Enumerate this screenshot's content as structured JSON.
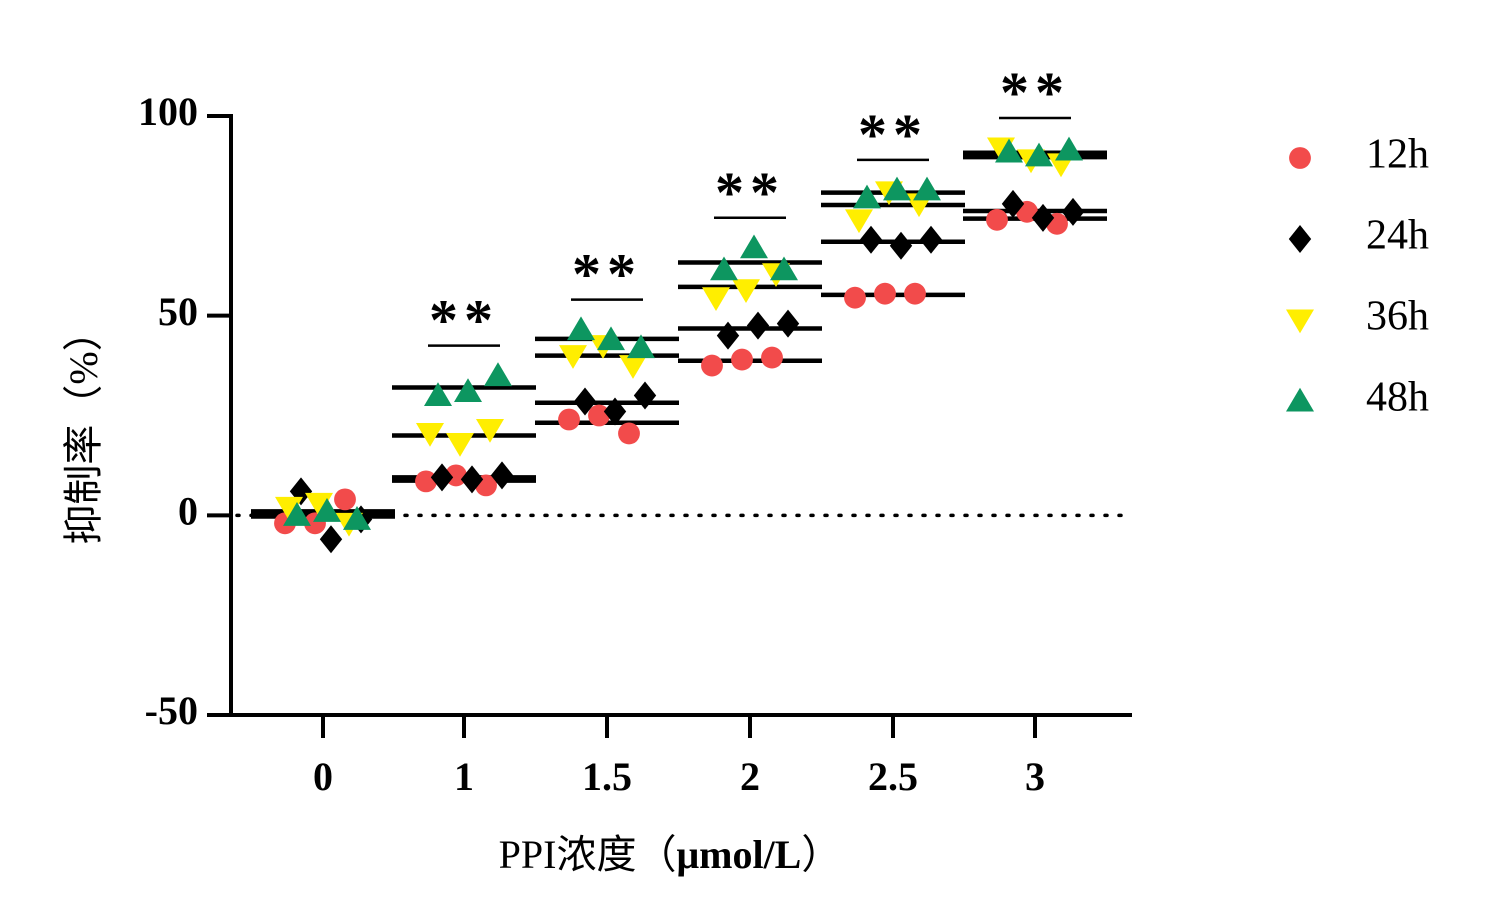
{
  "chart_data": {
    "type": "scatter",
    "x_label_prefix": "PPI浓度（",
    "x_label_unit": "μmol/L",
    "x_label_suffix": "）",
    "ylabel": "抑制率（%）",
    "ylim": [
      -50,
      100
    ],
    "y_ticks": [
      -50,
      0,
      50,
      100
    ],
    "zero_line": "dotted",
    "categories": [
      "0",
      "1",
      "1.5",
      "2",
      "2.5",
      "3"
    ],
    "significance": [
      "",
      "**",
      "**",
      "**",
      "**",
      "**"
    ],
    "legend_position": "right",
    "series": [
      {
        "name": "12h",
        "marker": "circle",
        "color": "#f24b4b",
        "points": [
          [
            -2,
            -2,
            4
          ],
          [
            8.5,
            10,
            7.5
          ],
          [
            24,
            25,
            20.5
          ],
          [
            37.5,
            39,
            39.5
          ],
          [
            54.5,
            55.5,
            55.5
          ],
          [
            74,
            76,
            73
          ]
        ],
        "means": [
          0,
          8.7,
          23.2,
          38.7,
          55.2,
          74.3
        ]
      },
      {
        "name": "24h",
        "marker": "diamond",
        "color": "#000000",
        "points": [
          [
            6,
            -6,
            -1
          ],
          [
            9.5,
            9,
            10
          ],
          [
            28.5,
            26,
            30
          ],
          [
            45,
            47.5,
            48
          ],
          [
            69,
            67.5,
            69
          ],
          [
            78,
            74.5,
            76
          ]
        ],
        "means": [
          -0.3,
          9.5,
          28.2,
          46.8,
          68.5,
          76.2
        ]
      },
      {
        "name": "36h",
        "marker": "triangle-down",
        "color": "#ffee00",
        "points": [
          [
            2,
            3,
            -2
          ],
          [
            20.5,
            18,
            21.5
          ],
          [
            40,
            42.5,
            37.5
          ],
          [
            54.5,
            56.5,
            60.5
          ],
          [
            74,
            81,
            78
          ],
          [
            92,
            89,
            88
          ]
        ],
        "means": [
          1,
          20,
          40,
          57.2,
          77.7,
          89.7
        ]
      },
      {
        "name": "48h",
        "marker": "triangle-up",
        "color": "#0d9660",
        "points": [
          [
            0,
            1,
            -1
          ],
          [
            30,
            31,
            35
          ],
          [
            46.5,
            44,
            42
          ],
          [
            61.5,
            67,
            61.5
          ],
          [
            79.5,
            81.5,
            81.5
          ],
          [
            91,
            90,
            91.5
          ]
        ],
        "means": [
          0,
          32,
          44.2,
          63.3,
          80.8,
          90.8
        ]
      }
    ]
  }
}
